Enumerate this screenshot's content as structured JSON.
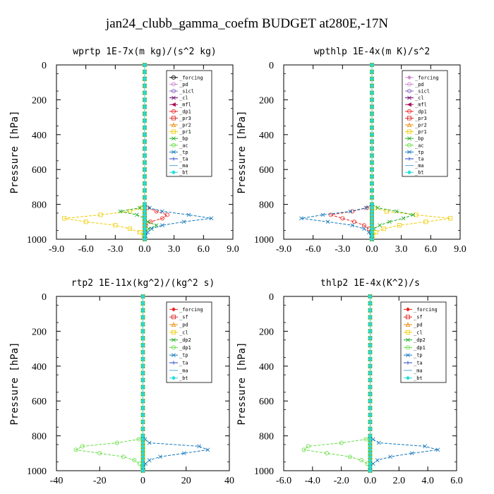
{
  "figure_title": "jan24_clubb_gamma_coefm  BUDGET at280E,-17N",
  "chart_data": [
    {
      "type": "line",
      "title": "wprtp  1E-7x(m kg)/(s^2 kg)",
      "ylabel": "Pressure [hPa]",
      "xlim": [
        -9,
        9
      ],
      "ylim": [
        1000,
        0
      ],
      "xticks": [
        "-9.0",
        "-6.0",
        "-3.0",
        "0.0",
        "3.0",
        "6.0",
        "9.0"
      ],
      "yticks": [
        "0",
        "200",
        "400",
        "600",
        "800",
        "1000"
      ],
      "legend_position": "top-right",
      "levels": [
        800,
        820,
        840,
        860,
        880,
        900,
        920,
        940,
        960,
        980,
        1000
      ],
      "series": [
        {
          "name": "_forcing",
          "color": "#000000",
          "marker": "o",
          "values": [
            0,
            0,
            0,
            0,
            0,
            0,
            0,
            0,
            0,
            0,
            0
          ]
        },
        {
          "name": "_pd",
          "color": "#cc88cc",
          "marker": "o",
          "values": [
            0,
            0,
            0,
            0,
            0,
            0,
            0,
            0,
            0,
            0,
            0
          ]
        },
        {
          "name": "_sicl",
          "color": "#8866bb",
          "marker": "o",
          "values": [
            0,
            0,
            0,
            0,
            0,
            0,
            0,
            0,
            0,
            0,
            0
          ]
        },
        {
          "name": "_cl",
          "color": "#660066",
          "marker": "x",
          "values": [
            0,
            0,
            0,
            0,
            0,
            0,
            0,
            0,
            0,
            0,
            0
          ]
        },
        {
          "name": "_mfl",
          "color": "#aa1155",
          "marker": "<",
          "values": [
            0,
            0,
            0,
            0,
            0,
            0,
            0,
            0,
            0,
            0,
            0
          ]
        },
        {
          "name": "_dp1",
          "color": "#ee2222",
          "marker": "o",
          "values": [
            0,
            0.3,
            1.2,
            2.3,
            1.8,
            0.6,
            0.1,
            0,
            0,
            0,
            0
          ]
        },
        {
          "name": "_pr3",
          "color": "#dd2222",
          "marker": "s",
          "values": [
            0,
            0,
            0,
            0,
            0,
            0,
            0,
            0,
            0,
            0,
            0
          ]
        },
        {
          "name": "_pr2",
          "color": "#ee8800",
          "marker": "^",
          "values": [
            0,
            0,
            0,
            0,
            0,
            0,
            0,
            0,
            0,
            0,
            0
          ]
        },
        {
          "name": "_pr1",
          "color": "#eecc00",
          "marker": "s",
          "values": [
            0,
            -0.3,
            -1.5,
            -4.5,
            -8.2,
            -6.0,
            -3.0,
            -1.5,
            -0.5,
            -0.1,
            0
          ]
        },
        {
          "name": "_bp",
          "color": "#22aa22",
          "marker": "x",
          "values": [
            0,
            -0.5,
            -2.5,
            -0.8,
            0,
            0.3,
            1.2,
            0.4,
            0.1,
            0,
            0
          ]
        },
        {
          "name": "_ac",
          "color": "#66dd44",
          "marker": "o",
          "values": [
            0,
            0,
            0,
            0,
            0,
            0,
            0,
            0,
            0,
            0,
            0
          ]
        },
        {
          "name": "_tp",
          "color": "#1177bb",
          "marker": "x",
          "values": [
            0,
            0.5,
            1.8,
            4.5,
            6.8,
            4.0,
            1.8,
            0.7,
            0.3,
            0.1,
            0
          ]
        },
        {
          "name": "_ta",
          "color": "#2244cc",
          "marker": "+",
          "values": [
            0,
            0,
            0,
            0,
            0,
            0,
            0,
            0,
            0,
            0,
            0
          ]
        },
        {
          "name": "_ma",
          "color": "#55aadd",
          "marker": "-",
          "values": [
            0,
            0,
            0,
            0,
            0,
            0,
            0,
            0,
            0,
            0,
            0
          ]
        },
        {
          "name": "_bt",
          "color": "#22dddd",
          "marker": "d",
          "values": [
            0,
            0,
            0,
            0,
            0,
            0,
            0,
            0,
            0,
            0,
            0
          ]
        }
      ]
    },
    {
      "type": "line",
      "title": "wpthlp  1E-4x(m K)/s^2",
      "ylabel": "Pressure [hPa]",
      "xlim": [
        -9,
        9
      ],
      "ylim": [
        1000,
        0
      ],
      "xticks": [
        "-9.0",
        "-6.0",
        "-3.0",
        "0.0",
        "3.0",
        "6.0",
        "9.0"
      ],
      "yticks": [
        "0",
        "200",
        "400",
        "600",
        "800",
        "1000"
      ],
      "legend_position": "top-right",
      "levels": [
        800,
        820,
        840,
        860,
        880,
        900,
        920,
        940,
        960,
        980,
        1000
      ],
      "series": [
        {
          "name": "_forcing",
          "color": "#cc88cc",
          "marker": "d",
          "values": [
            0,
            0,
            0,
            0,
            0,
            0,
            0,
            0,
            0,
            0,
            0
          ]
        },
        {
          "name": "_pd",
          "color": "#cc88cc",
          "marker": "o",
          "values": [
            0,
            0,
            0,
            0,
            0,
            0,
            0,
            0,
            0,
            0,
            0
          ]
        },
        {
          "name": "_sicl",
          "color": "#8866bb",
          "marker": "o",
          "values": [
            0,
            0,
            0,
            0,
            0,
            0,
            0,
            0,
            0,
            0,
            0
          ]
        },
        {
          "name": "_cl",
          "color": "#660066",
          "marker": "x",
          "values": [
            0,
            0,
            0,
            0,
            0,
            0,
            0,
            0,
            0,
            0,
            0
          ]
        },
        {
          "name": "_mfl",
          "color": "#aa1155",
          "marker": "<",
          "values": [
            0,
            0,
            0,
            0,
            0,
            0,
            0,
            0,
            0,
            0,
            0
          ]
        },
        {
          "name": "_dp1",
          "color": "#ee2222",
          "marker": "o",
          "values": [
            0,
            -0.5,
            -2.0,
            -4.2,
            -3.0,
            -1.8,
            -0.8,
            -0.3,
            -0.1,
            0,
            0
          ]
        },
        {
          "name": "_pr3",
          "color": "#dd2222",
          "marker": "s",
          "values": [
            0,
            0,
            0,
            0,
            0,
            0,
            0,
            0,
            0,
            0,
            0
          ]
        },
        {
          "name": "_pr2",
          "color": "#ee8800",
          "marker": "^",
          "values": [
            0,
            0,
            0,
            0,
            0,
            0,
            0,
            0,
            0,
            0,
            0
          ]
        },
        {
          "name": "_pr1",
          "color": "#eecc00",
          "marker": "s",
          "values": [
            0,
            0.3,
            1.5,
            4.5,
            8.0,
            5.5,
            2.8,
            1.2,
            0.4,
            0.1,
            0
          ]
        },
        {
          "name": "_bp",
          "color": "#22aa22",
          "marker": "x",
          "values": [
            0,
            0.6,
            2.5,
            4.2,
            3.2,
            1.8,
            0.8,
            0.2,
            0,
            0,
            0
          ]
        },
        {
          "name": "_ac",
          "color": "#66dd44",
          "marker": "o",
          "values": [
            0,
            0,
            0,
            0,
            0,
            0,
            0,
            0,
            0,
            0,
            0
          ]
        },
        {
          "name": "_tp",
          "color": "#1177bb",
          "marker": "x",
          "values": [
            0,
            -0.6,
            -2.2,
            -5.0,
            -7.2,
            -4.5,
            -2.0,
            -0.8,
            -0.3,
            -0.1,
            0
          ]
        },
        {
          "name": "_ta",
          "color": "#2244cc",
          "marker": "+",
          "values": [
            0,
            0,
            0,
            0,
            0,
            0,
            0,
            0,
            0,
            0,
            0
          ]
        },
        {
          "name": "_ma",
          "color": "#55aadd",
          "marker": "-",
          "values": [
            0,
            0,
            0,
            0,
            0,
            0,
            0,
            0,
            0,
            0,
            0
          ]
        },
        {
          "name": "_bt",
          "color": "#22dddd",
          "marker": "d",
          "values": [
            0,
            0,
            0,
            0,
            0,
            0,
            0,
            0,
            0,
            0,
            0
          ]
        }
      ]
    },
    {
      "type": "line",
      "title": "rtp2  1E-11x(kg^2)/(kg^2 s)",
      "ylabel": "Pressure [hPa]",
      "xlim": [
        -40,
        40
      ],
      "ylim": [
        1000,
        0
      ],
      "xticks": [
        "-40",
        "-20",
        "0",
        "20",
        "40"
      ],
      "yticks": [
        "0",
        "200",
        "400",
        "600",
        "800",
        "1000"
      ],
      "legend_position": "top-right",
      "levels": [
        800,
        820,
        840,
        860,
        880,
        900,
        920,
        940,
        960,
        980,
        1000
      ],
      "series": [
        {
          "name": "_forcing",
          "color": "#ee2222",
          "marker": "d",
          "values": [
            0,
            0,
            0,
            0,
            0,
            0,
            0,
            0,
            0,
            0,
            0
          ]
        },
        {
          "name": "_sf",
          "color": "#dd2222",
          "marker": "s",
          "values": [
            0,
            0,
            0,
            0,
            0,
            0,
            0,
            0,
            0,
            0,
            0
          ]
        },
        {
          "name": "_pd",
          "color": "#ee8800",
          "marker": "^",
          "values": [
            0,
            0,
            0,
            0,
            0,
            0,
            0,
            0,
            0,
            0,
            0
          ]
        },
        {
          "name": "_cl",
          "color": "#eecc00",
          "marker": "s",
          "values": [
            0,
            0,
            0,
            0,
            0,
            0,
            0,
            0,
            0,
            0,
            0
          ]
        },
        {
          "name": "_dp2",
          "color": "#22aa22",
          "marker": "x",
          "values": [
            0,
            0,
            0,
            0,
            0,
            0,
            0,
            0,
            0,
            0,
            0
          ]
        },
        {
          "name": "_dp1",
          "color": "#66dd44",
          "marker": "o",
          "values": [
            0,
            -2.0,
            -12.0,
            -28.0,
            -31.0,
            -20.0,
            -9.0,
            -4.0,
            -1.5,
            -0.3,
            0
          ]
        },
        {
          "name": "_tp",
          "color": "#1177bb",
          "marker": "x",
          "values": [
            0,
            1.0,
            3.0,
            26.0,
            30.0,
            19.0,
            8.0,
            3.0,
            1.2,
            0.3,
            0
          ]
        },
        {
          "name": "_ta",
          "color": "#2244cc",
          "marker": "+",
          "values": [
            0,
            0,
            0,
            0,
            0,
            0,
            0,
            0,
            0,
            0,
            0
          ]
        },
        {
          "name": "_ma",
          "color": "#55aadd",
          "marker": "-",
          "values": [
            0,
            0,
            0,
            0,
            0,
            0,
            0,
            0,
            0,
            0,
            0
          ]
        },
        {
          "name": "_bt",
          "color": "#22dddd",
          "marker": "d",
          "values": [
            0,
            0,
            0,
            0,
            0,
            0,
            0,
            0,
            0,
            0,
            0
          ]
        }
      ]
    },
    {
      "type": "line",
      "title": "thlp2  1E-4x(K^2)/s",
      "ylabel": "Pressure [hPa]",
      "xlim": [
        -6,
        6
      ],
      "ylim": [
        1000,
        0
      ],
      "xticks": [
        "-6.0",
        "-4.0",
        "-2.0",
        "0.0",
        "2.0",
        "4.0",
        "6.0"
      ],
      "yticks": [
        "0",
        "200",
        "400",
        "600",
        "800",
        "1000"
      ],
      "legend_position": "top-right",
      "levels": [
        800,
        820,
        840,
        860,
        880,
        900,
        920,
        940,
        960,
        980,
        1000
      ],
      "series": [
        {
          "name": "_forcing",
          "color": "#ee2222",
          "marker": "d",
          "values": [
            0,
            0,
            0,
            0,
            0,
            0,
            0,
            0,
            0,
            0,
            0
          ]
        },
        {
          "name": "_sf",
          "color": "#dd2222",
          "marker": "s",
          "values": [
            0,
            0,
            0,
            0,
            0,
            0,
            0,
            0,
            0,
            0,
            0
          ]
        },
        {
          "name": "_pd",
          "color": "#ee8800",
          "marker": "^",
          "values": [
            0,
            0,
            0,
            0,
            0,
            0,
            0,
            0,
            0,
            0,
            0
          ]
        },
        {
          "name": "_cl",
          "color": "#eecc00",
          "marker": "s",
          "values": [
            0,
            0,
            0,
            0,
            0,
            0,
            0,
            0,
            0,
            0,
            0
          ]
        },
        {
          "name": "_dp2",
          "color": "#22aa22",
          "marker": "x",
          "values": [
            0,
            0,
            0,
            0,
            0,
            0,
            0,
            0,
            0,
            0,
            0
          ]
        },
        {
          "name": "_dp1",
          "color": "#66dd44",
          "marker": "o",
          "values": [
            0,
            -0.3,
            -2.0,
            -4.3,
            -4.6,
            -3.0,
            -1.4,
            -0.6,
            -0.2,
            0,
            0
          ]
        },
        {
          "name": "_tp",
          "color": "#1177bb",
          "marker": "x",
          "values": [
            0,
            0.2,
            0.6,
            3.8,
            4.7,
            2.9,
            1.4,
            0.5,
            0.2,
            0,
            0
          ]
        },
        {
          "name": "_ta",
          "color": "#2244cc",
          "marker": "+",
          "values": [
            0,
            0,
            0,
            0,
            0,
            0,
            0,
            0,
            0,
            0,
            0
          ]
        },
        {
          "name": "_ma",
          "color": "#55aadd",
          "marker": "-",
          "values": [
            0,
            0,
            0,
            0,
            0,
            0,
            0,
            0,
            0,
            0,
            0
          ]
        },
        {
          "name": "_bt",
          "color": "#22dddd",
          "marker": "d",
          "values": [
            0,
            0,
            0,
            0,
            0,
            0,
            0,
            0,
            0,
            0,
            0
          ]
        }
      ]
    }
  ]
}
